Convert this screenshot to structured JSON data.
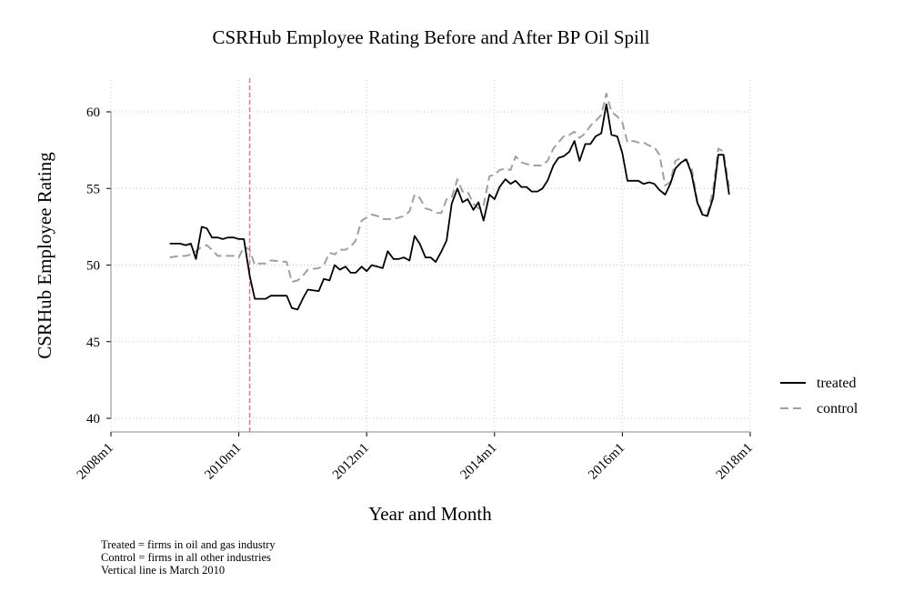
{
  "chart_data": {
    "type": "line",
    "title": "CSRHub Employee Rating Before and After BP Oil Spill",
    "xlabel": "Year and Month",
    "ylabel": "CSRHub Employee Rating",
    "xlim": [
      2008.0,
      2018.0
    ],
    "ylim": [
      40,
      62
    ],
    "x_ticks": [
      2008,
      2010,
      2012,
      2014,
      2016,
      2018
    ],
    "x_tick_labels": [
      "2008m1",
      "2010m1",
      "2012m1",
      "2014m1",
      "2016m1",
      "2018m1"
    ],
    "y_ticks": [
      40,
      45,
      50,
      55,
      60
    ],
    "y_tick_labels": [
      "40",
      "45",
      "50",
      "55",
      "60"
    ],
    "grid": true,
    "legend_position": "right",
    "vline": {
      "x": 2010.17,
      "color": "#c77f96",
      "style": "dashed"
    },
    "series": [
      {
        "name": "treated",
        "color": "#000000",
        "style": "solid",
        "points": [
          [
            2008.92,
            51.4
          ],
          [
            2009.08,
            51.4
          ],
          [
            2009.17,
            51.3
          ],
          [
            2009.25,
            51.4
          ],
          [
            2009.33,
            50.4
          ],
          [
            2009.42,
            52.5
          ],
          [
            2009.5,
            52.4
          ],
          [
            2009.58,
            51.8
          ],
          [
            2009.67,
            51.8
          ],
          [
            2009.75,
            51.7
          ],
          [
            2009.83,
            51.8
          ],
          [
            2009.92,
            51.8
          ],
          [
            2010.0,
            51.7
          ],
          [
            2010.08,
            51.7
          ],
          [
            2010.17,
            49.3
          ],
          [
            2010.25,
            47.8
          ],
          [
            2010.42,
            47.8
          ],
          [
            2010.5,
            48.0
          ],
          [
            2010.75,
            48.0
          ],
          [
            2010.83,
            47.2
          ],
          [
            2010.92,
            47.1
          ],
          [
            2011.0,
            47.8
          ],
          [
            2011.08,
            48.4
          ],
          [
            2011.25,
            48.3
          ],
          [
            2011.33,
            49.1
          ],
          [
            2011.42,
            49.0
          ],
          [
            2011.5,
            50.0
          ],
          [
            2011.58,
            49.7
          ],
          [
            2011.67,
            49.9
          ],
          [
            2011.75,
            49.5
          ],
          [
            2011.83,
            49.5
          ],
          [
            2011.92,
            49.9
          ],
          [
            2012.0,
            49.6
          ],
          [
            2012.08,
            50.0
          ],
          [
            2012.17,
            49.9
          ],
          [
            2012.25,
            49.8
          ],
          [
            2012.33,
            50.9
          ],
          [
            2012.42,
            50.4
          ],
          [
            2012.5,
            50.4
          ],
          [
            2012.58,
            50.5
          ],
          [
            2012.67,
            50.3
          ],
          [
            2012.75,
            51.9
          ],
          [
            2012.83,
            51.4
          ],
          [
            2012.92,
            50.5
          ],
          [
            2013.0,
            50.5
          ],
          [
            2013.08,
            50.2
          ],
          [
            2013.17,
            50.9
          ],
          [
            2013.25,
            51.6
          ],
          [
            2013.33,
            54.0
          ],
          [
            2013.42,
            55.0
          ],
          [
            2013.5,
            54.1
          ],
          [
            2013.58,
            54.3
          ],
          [
            2013.67,
            53.6
          ],
          [
            2013.75,
            54.1
          ],
          [
            2013.83,
            52.9
          ],
          [
            2013.92,
            54.6
          ],
          [
            2014.0,
            54.3
          ],
          [
            2014.08,
            55.1
          ],
          [
            2014.17,
            55.6
          ],
          [
            2014.25,
            55.3
          ],
          [
            2014.33,
            55.5
          ],
          [
            2014.42,
            55.1
          ],
          [
            2014.5,
            55.1
          ],
          [
            2014.58,
            54.8
          ],
          [
            2014.67,
            54.8
          ],
          [
            2014.75,
            55.0
          ],
          [
            2014.83,
            55.5
          ],
          [
            2014.92,
            56.5
          ],
          [
            2015.0,
            57.0
          ],
          [
            2015.08,
            57.1
          ],
          [
            2015.17,
            57.4
          ],
          [
            2015.25,
            58.1
          ],
          [
            2015.33,
            56.8
          ],
          [
            2015.42,
            57.9
          ],
          [
            2015.5,
            57.9
          ],
          [
            2015.58,
            58.4
          ],
          [
            2015.67,
            58.6
          ],
          [
            2015.75,
            60.5
          ],
          [
            2015.83,
            58.5
          ],
          [
            2015.92,
            58.4
          ],
          [
            2016.0,
            57.3
          ],
          [
            2016.08,
            55.5
          ],
          [
            2016.17,
            55.5
          ],
          [
            2016.25,
            55.5
          ],
          [
            2016.33,
            55.3
          ],
          [
            2016.42,
            55.4
          ],
          [
            2016.5,
            55.3
          ],
          [
            2016.58,
            54.9
          ],
          [
            2016.67,
            54.6
          ],
          [
            2016.75,
            55.3
          ],
          [
            2016.83,
            56.3
          ],
          [
            2016.92,
            56.7
          ],
          [
            2017.0,
            56.9
          ],
          [
            2017.08,
            56.0
          ],
          [
            2017.17,
            54.1
          ],
          [
            2017.25,
            53.3
          ],
          [
            2017.33,
            53.2
          ],
          [
            2017.42,
            54.4
          ],
          [
            2017.5,
            57.2
          ],
          [
            2017.58,
            57.2
          ],
          [
            2017.67,
            54.6
          ]
        ]
      },
      {
        "name": "control",
        "color": "#a0a0a0",
        "style": "dashed",
        "points": [
          [
            2008.92,
            50.5
          ],
          [
            2009.08,
            50.6
          ],
          [
            2009.17,
            50.6
          ],
          [
            2009.25,
            50.7
          ],
          [
            2009.33,
            50.9
          ],
          [
            2009.42,
            51.2
          ],
          [
            2009.5,
            51.3
          ],
          [
            2009.58,
            51.0
          ],
          [
            2009.67,
            50.6
          ],
          [
            2009.75,
            50.6
          ],
          [
            2009.83,
            50.6
          ],
          [
            2009.92,
            50.6
          ],
          [
            2010.0,
            50.5
          ],
          [
            2010.08,
            51.2
          ],
          [
            2010.17,
            51.0
          ],
          [
            2010.25,
            50.0
          ],
          [
            2010.33,
            50.1
          ],
          [
            2010.42,
            50.1
          ],
          [
            2010.5,
            50.3
          ],
          [
            2010.75,
            50.2
          ],
          [
            2010.83,
            48.9
          ],
          [
            2010.92,
            49.0
          ],
          [
            2011.0,
            49.3
          ],
          [
            2011.08,
            49.7
          ],
          [
            2011.25,
            49.8
          ],
          [
            2011.33,
            50.0
          ],
          [
            2011.42,
            50.8
          ],
          [
            2011.5,
            50.7
          ],
          [
            2011.58,
            51.0
          ],
          [
            2011.67,
            51.0
          ],
          [
            2011.75,
            51.2
          ],
          [
            2011.83,
            51.6
          ],
          [
            2011.92,
            52.9
          ],
          [
            2012.0,
            53.1
          ],
          [
            2012.08,
            53.3
          ],
          [
            2012.17,
            53.2
          ],
          [
            2012.25,
            53.0
          ],
          [
            2012.33,
            53.0
          ],
          [
            2012.42,
            53.0
          ],
          [
            2012.5,
            53.1
          ],
          [
            2012.58,
            53.2
          ],
          [
            2012.67,
            53.5
          ],
          [
            2012.75,
            54.6
          ],
          [
            2012.83,
            54.4
          ],
          [
            2012.92,
            53.7
          ],
          [
            2013.0,
            53.6
          ],
          [
            2013.08,
            53.4
          ],
          [
            2013.17,
            53.4
          ],
          [
            2013.25,
            54.3
          ],
          [
            2013.33,
            54.4
          ],
          [
            2013.42,
            55.6
          ],
          [
            2013.5,
            54.8
          ],
          [
            2013.58,
            54.8
          ],
          [
            2013.67,
            54.0
          ],
          [
            2013.75,
            53.7
          ],
          [
            2013.83,
            53.9
          ],
          [
            2013.92,
            55.8
          ],
          [
            2014.0,
            55.9
          ],
          [
            2014.08,
            56.2
          ],
          [
            2014.17,
            56.3
          ],
          [
            2014.25,
            56.2
          ],
          [
            2014.33,
            57.1
          ],
          [
            2014.42,
            56.7
          ],
          [
            2014.5,
            56.6
          ],
          [
            2014.58,
            56.5
          ],
          [
            2014.67,
            56.5
          ],
          [
            2014.75,
            56.5
          ],
          [
            2014.83,
            56.8
          ],
          [
            2014.92,
            57.6
          ],
          [
            2015.0,
            58.0
          ],
          [
            2015.08,
            58.4
          ],
          [
            2015.17,
            58.5
          ],
          [
            2015.25,
            58.7
          ],
          [
            2015.33,
            58.3
          ],
          [
            2015.42,
            58.6
          ],
          [
            2015.5,
            59.1
          ],
          [
            2015.58,
            59.4
          ],
          [
            2015.67,
            59.8
          ],
          [
            2015.75,
            61.2
          ],
          [
            2015.83,
            60.0
          ],
          [
            2015.92,
            59.7
          ],
          [
            2016.0,
            59.3
          ],
          [
            2016.08,
            58.0
          ],
          [
            2016.17,
            58.1
          ],
          [
            2016.25,
            58.0
          ],
          [
            2016.33,
            58.0
          ],
          [
            2016.42,
            57.8
          ],
          [
            2016.5,
            57.7
          ],
          [
            2016.58,
            57.2
          ],
          [
            2016.67,
            55.2
          ],
          [
            2016.75,
            55.4
          ],
          [
            2016.83,
            56.8
          ],
          [
            2016.92,
            57.0
          ],
          [
            2017.0,
            56.8
          ],
          [
            2017.08,
            56.4
          ],
          [
            2017.17,
            54.2
          ],
          [
            2017.25,
            53.4
          ],
          [
            2017.33,
            53.3
          ],
          [
            2017.42,
            54.9
          ],
          [
            2017.5,
            57.6
          ],
          [
            2017.58,
            57.4
          ],
          [
            2017.67,
            55.1
          ]
        ]
      }
    ],
    "notes": [
      "Treated = firms in oil and gas industry",
      "Control = firms in all other industries",
      "Vertical line is March 2010"
    ]
  }
}
